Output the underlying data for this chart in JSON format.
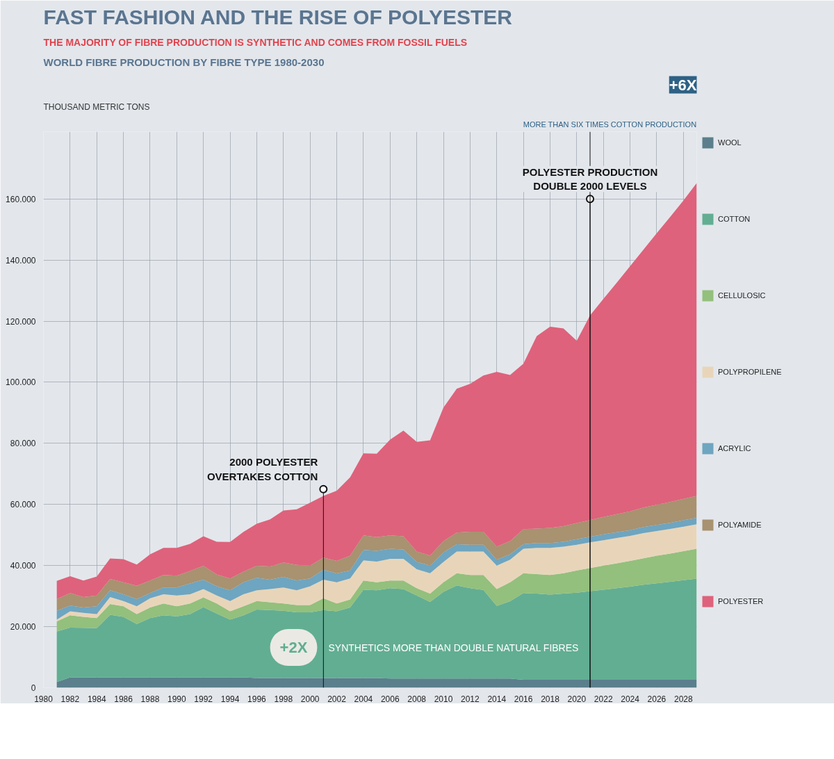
{
  "chart_data": {
    "type": "area",
    "stacked": true,
    "title": "FAST FASHION AND THE RISE OF POLYESTER",
    "subtitle": "THE MAJORITY OF FIBRE PRODUCTION IS SYNTHETIC AND COMES FROM FOSSIL FUELS",
    "ylabel": "THOUSAND METRIC TONS",
    "x": [
      1981,
      1982,
      1983,
      1984,
      1985,
      1986,
      1987,
      1988,
      1989,
      1990,
      1991,
      1992,
      1993,
      1994,
      1995,
      1996,
      1997,
      1998,
      1999,
      2000,
      2001,
      2002,
      2003,
      2004,
      2005,
      2006,
      2007,
      2008,
      2009,
      2010,
      2011,
      2012,
      2013,
      2014,
      2015,
      2016,
      2017,
      2018,
      2019,
      2020,
      2021,
      2022,
      2023,
      2024,
      2025,
      2026,
      2027,
      2028,
      2029
    ],
    "xlim": [
      1980,
      2029
    ],
    "xticks": [
      1980,
      1982,
      1984,
      1986,
      1988,
      1990,
      1992,
      1994,
      1996,
      1998,
      2000,
      2002,
      2004,
      2006,
      2008,
      2010,
      2012,
      2014,
      2016,
      2018,
      2020,
      2022,
      2024,
      2026,
      2028
    ],
    "ylim": [
      0,
      182000
    ],
    "yticks": [
      0,
      {
        "value": 20000,
        "label": "20.000"
      },
      {
        "value": 40000,
        "label": "40.000"
      },
      {
        "value": 60000,
        "label": "60.000"
      },
      {
        "value": 80000,
        "label": "80.000"
      },
      {
        "value": 100000,
        "label": "100.000"
      },
      {
        "value": 120000,
        "label": "120.000"
      },
      {
        "value": 140000,
        "label": "140.000"
      },
      {
        "value": 160000,
        "label": "160.000"
      }
    ],
    "grid": true,
    "legend": "right",
    "ref_lines": [
      {
        "axis": "x",
        "value": 2021,
        "color": "#111111"
      }
    ],
    "series": [
      {
        "name": "WOOL",
        "color": "#5b7f8c",
        "values": [
          1900,
          3400,
          3400,
          3400,
          3400,
          3400,
          3400,
          3400,
          3400,
          3400,
          3400,
          3400,
          3400,
          3400,
          3400,
          3200,
          3200,
          3200,
          3200,
          3200,
          3200,
          3200,
          3200,
          3200,
          3200,
          3000,
          3000,
          3000,
          3000,
          3000,
          3000,
          3000,
          3000,
          3000,
          3000,
          2600,
          2600,
          2600,
          2600,
          2600,
          2600,
          2600,
          2600,
          2600,
          2600,
          2600,
          2600,
          2600,
          2600
        ]
      },
      {
        "name": "COTTON",
        "color": "#62ae93",
        "values": [
          16500,
          16300,
          16200,
          16100,
          20500,
          19800,
          17500,
          19400,
          20300,
          20000,
          20700,
          23000,
          20900,
          18900,
          20300,
          22400,
          22200,
          22000,
          21500,
          21500,
          22200,
          21800,
          23100,
          28900,
          28700,
          29600,
          29300,
          27200,
          25100,
          28400,
          30500,
          29600,
          29000,
          23800,
          25300,
          28400,
          28200,
          27900,
          28200,
          28500,
          29000,
          29500,
          30000,
          30500,
          31100,
          31600,
          32100,
          32600,
          33100
        ]
      },
      {
        "name": "CELLULOSIC",
        "color": "#93c07c",
        "values": [
          3300,
          4000,
          3600,
          3300,
          3500,
          3500,
          3200,
          3500,
          3900,
          3300,
          3500,
          3200,
          3300,
          2700,
          3000,
          2800,
          2600,
          2400,
          2400,
          2400,
          3900,
          2600,
          2600,
          3000,
          2600,
          2500,
          2800,
          2400,
          2700,
          3100,
          4000,
          4300,
          4900,
          5500,
          6200,
          6500,
          6400,
          6400,
          6700,
          7300,
          7600,
          7900,
          8100,
          8400,
          8700,
          9000,
          9200,
          9500,
          9800
        ]
      },
      {
        "name": "POLYPROPILENE",
        "color": "#e8d5b9",
        "values": [
          600,
          1300,
          1300,
          1300,
          2300,
          1700,
          2600,
          3000,
          3000,
          3500,
          3000,
          2700,
          2600,
          3400,
          3900,
          3500,
          4300,
          5200,
          4800,
          6100,
          6100,
          6900,
          6900,
          6600,
          6800,
          7100,
          7100,
          6200,
          6700,
          6700,
          7100,
          7700,
          7700,
          7700,
          7400,
          8000,
          8600,
          8900,
          8700,
          8400,
          8400,
          8300,
          8300,
          8200,
          8200,
          8100,
          8100,
          8000,
          8000
        ]
      },
      {
        "name": "ACRYLIC",
        "color": "#6ea5c0",
        "values": [
          2900,
          1900,
          1800,
          2600,
          2200,
          2200,
          2300,
          1700,
          2200,
          2600,
          3500,
          3100,
          3000,
          3500,
          3900,
          4100,
          3100,
          3500,
          3200,
          2600,
          3200,
          2900,
          2600,
          3400,
          3500,
          3300,
          3100,
          2400,
          2500,
          3100,
          2400,
          2200,
          2200,
          1900,
          1800,
          1500,
          1600,
          1600,
          1600,
          1800,
          1800,
          1900,
          1900,
          1900,
          2000,
          2000,
          2000,
          2100,
          2100
        ]
      },
      {
        "name": "POLYAMIDE",
        "color": "#a89270",
        "values": [
          3800,
          4100,
          3400,
          3500,
          3700,
          3900,
          4400,
          4100,
          4100,
          3900,
          4100,
          4500,
          3900,
          3900,
          3500,
          3900,
          4300,
          4700,
          5100,
          4200,
          4000,
          4100,
          4800,
          4800,
          4500,
          4400,
          4300,
          3400,
          3300,
          3700,
          3800,
          4300,
          4300,
          4300,
          4300,
          4900,
          4700,
          4900,
          5100,
          5300,
          5500,
          5700,
          5900,
          6100,
          6400,
          6600,
          6800,
          7000,
          7200
        ]
      },
      {
        "name": "POLYESTER",
        "color": "#de627b",
        "values": [
          6000,
          5500,
          5400,
          6200,
          6700,
          7600,
          6900,
          8600,
          8900,
          9100,
          8900,
          9700,
          10700,
          11900,
          13000,
          13800,
          15400,
          17000,
          18200,
          20600,
          20200,
          23000,
          25700,
          26800,
          27300,
          31300,
          34600,
          35900,
          37700,
          43700,
          47100,
          48400,
          51100,
          57200,
          54400,
          54200,
          63000,
          65900,
          64700,
          59700,
          67000,
          71400,
          75800,
          80300,
          84400,
          88900,
          93300,
          97700,
          102400
        ]
      }
    ],
    "annotations": [
      "WORLD FIBRE PRODUCTION BY FIBRE TYPE 1980-2030",
      {
        "text": "2000 POLYESTER OVERTAKES COTTON",
        "x": 2001,
        "y": 65000
      },
      {
        "text": "POLYESTER PRODUCTION DOUBLE 2000 LEVELS",
        "x": 2021,
        "y": 160000
      },
      "+6X",
      "MORE THAN SIX TIMES COTTON PRODUCTION",
      "+2X",
      "SYNTHETICS MORE THAN DOUBLE NATURAL FIBRES"
    ]
  }
}
